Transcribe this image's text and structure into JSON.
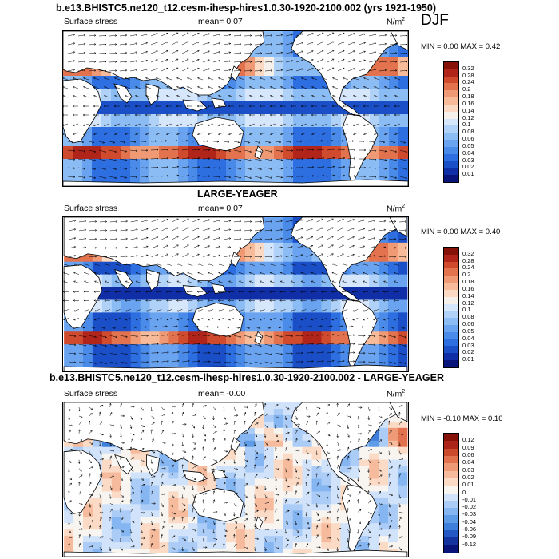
{
  "season": "DJF",
  "header_title": "b.e13.BHISTC5.ne120_t12.cesm-ihesp-hires1.0.30-1920-2100.002 (yrs 1921-1950)",
  "palette": {
    "abs": [
      "#08147a",
      "#102fa6",
      "#1a4fc8",
      "#2d6ee0",
      "#4a8ae8",
      "#6aa3ef",
      "#8cbcf4",
      "#b0d2f8",
      "#d6e6fb",
      "#f5f0ea",
      "#fbd9c2",
      "#f7bb9a",
      "#f09a75",
      "#e3734f",
      "#d04a2e",
      "#b1241a",
      "#861108"
    ],
    "diff": [
      "#08147a",
      "#15339e",
      "#2458c4",
      "#3f7fdc",
      "#5f9ce8",
      "#85b6f1",
      "#aaccf6",
      "#d1e3fa",
      "#f8f4f0",
      "#fbdac6",
      "#f6bb9d",
      "#ee9a76",
      "#e2714d",
      "#cc4a2c",
      "#ad2418",
      "#861108"
    ]
  },
  "panels": [
    {
      "label": "Surface stress",
      "mean": "mean=  0.07",
      "units": "N/m",
      "units_sup": "2",
      "minmax": "MIN =  0.00 MAX =  0.42",
      "colorbar_ticks": [
        "0.32",
        "0.28",
        "0.24",
        "0.2",
        "0.18",
        "0.16",
        "0.14",
        "0.12",
        "0.1",
        "0.08",
        "0.06",
        "0.05",
        "0.04",
        "0.03",
        "0.02",
        "0.01"
      ]
    },
    {
      "title": "LARGE-YEAGER",
      "label": "Surface stress",
      "mean": "mean=  0.07",
      "units": "N/m",
      "units_sup": "2",
      "minmax": "MIN =  0.00 MAX =  0.40",
      "colorbar_ticks": [
        "0.32",
        "0.28",
        "0.24",
        "0.2",
        "0.18",
        "0.16",
        "0.14",
        "0.12",
        "0.1",
        "0.08",
        "0.06",
        "0.05",
        "0.04",
        "0.03",
        "0.02",
        "0.01"
      ]
    },
    {
      "title": "b.e13.BHISTC5.ne120_t12.cesm-ihesp-hires1.0.30-1920-2100.002 - LARGE-YEAGER",
      "label": "Surface stress",
      "mean": "mean= -0.00",
      "units": "N/m",
      "units_sup": "2",
      "minmax": "MIN = -0.10 MAX =  0.16",
      "colorbar_ticks": [
        "0.12",
        "0.09",
        "0.06",
        "0.04",
        "0.03",
        "0.02",
        "0.01",
        "0",
        "-0.01",
        "-0.02",
        "-0.03",
        "-0.04",
        "-0.06",
        "-0.09",
        "-0.12"
      ]
    }
  ],
  "chart_data": [
    {
      "type": "heatmap",
      "subtype": "global map with wind-stress vectors",
      "title": "b.e13.BHISTC5.ne120_t12.cesm-ihesp-hires1.0.30-1920-2100.002 (yrs 1921-1950)",
      "field": "Surface stress",
      "units": "N/m2",
      "season": "DJF",
      "mean": 0.07,
      "min": 0.0,
      "max": 0.42,
      "contour_levels": [
        0.01,
        0.02,
        0.03,
        0.04,
        0.05,
        0.06,
        0.08,
        0.1,
        0.12,
        0.14,
        0.16,
        0.18,
        0.2,
        0.24,
        0.28,
        0.32
      ]
    },
    {
      "type": "heatmap",
      "subtype": "global map with wind-stress vectors",
      "title": "LARGE-YEAGER",
      "field": "Surface stress",
      "units": "N/m2",
      "season": "DJF",
      "mean": 0.07,
      "min": 0.0,
      "max": 0.4,
      "contour_levels": [
        0.01,
        0.02,
        0.03,
        0.04,
        0.05,
        0.06,
        0.08,
        0.1,
        0.12,
        0.14,
        0.16,
        0.18,
        0.2,
        0.24,
        0.28,
        0.32
      ]
    },
    {
      "type": "heatmap",
      "subtype": "global difference map with wind-stress vectors",
      "title": "b.e13.BHISTC5.ne120_t12.cesm-ihesp-hires1.0.30-1920-2100.002 - LARGE-YEAGER",
      "field": "Surface stress",
      "units": "N/m2",
      "season": "DJF",
      "mean": -0.0,
      "min": -0.1,
      "max": 0.16,
      "contour_levels": [
        -0.12,
        -0.09,
        -0.06,
        -0.04,
        -0.03,
        -0.02,
        -0.01,
        0,
        0.01,
        0.02,
        0.03,
        0.04,
        0.06,
        0.09,
        0.12
      ]
    }
  ]
}
